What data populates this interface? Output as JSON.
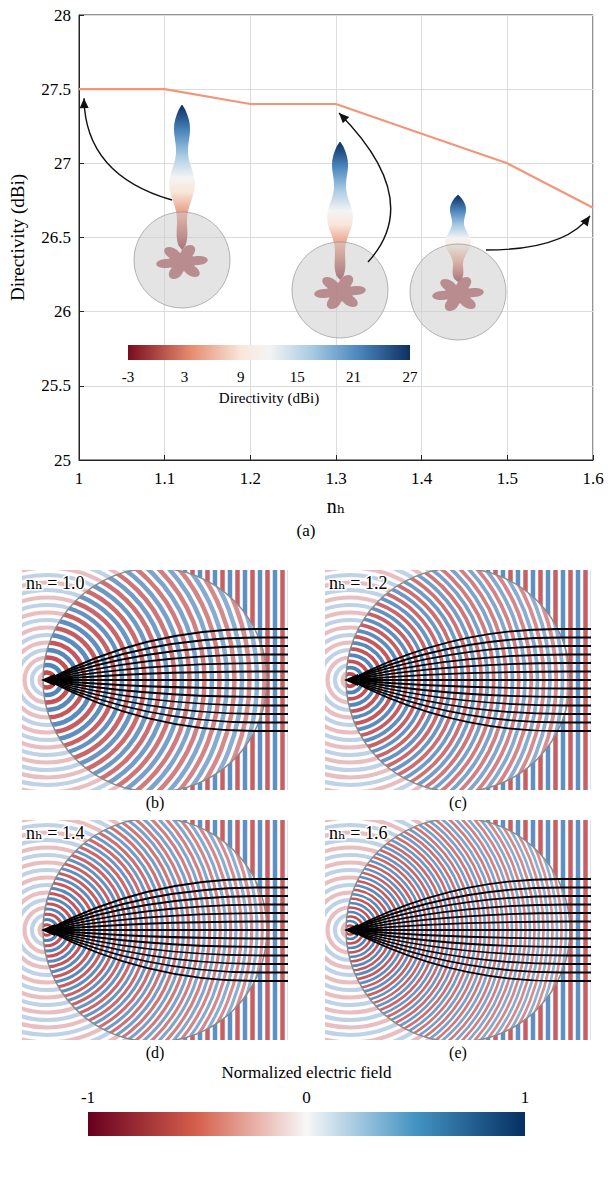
{
  "chart_data": {
    "type": "line",
    "x": [
      1,
      1.1,
      1.2,
      1.3,
      1.4,
      1.5,
      1.6
    ],
    "values": [
      27.5,
      27.5,
      27.4,
      27.4,
      27.2,
      27.0,
      26.7
    ],
    "color": "#f4957a",
    "x_label": "nₕ",
    "y_label": "Directivity (dBi)",
    "xlim": [
      1,
      1.6
    ],
    "xticks": [
      1,
      1.1,
      1.2,
      1.3,
      1.4,
      1.5,
      1.6
    ],
    "ylim": [
      25,
      28
    ],
    "yticks": [
      25,
      25.5,
      26,
      26.5,
      27,
      27.5,
      28
    ],
    "grid": true,
    "panel_label": "(a)",
    "colorbar": {
      "label": "Directivity (dBi)",
      "range": [
        -3,
        27
      ],
      "ticks": [
        -3,
        3,
        9,
        15,
        21,
        27
      ]
    }
  },
  "field_panels": [
    {
      "title": "nₕ = 1.0",
      "label": "(b)"
    },
    {
      "title": "nₕ = 1.2",
      "label": "(c)"
    },
    {
      "title": "nₕ = 1.4",
      "label": "(d)"
    },
    {
      "title": "nₕ = 1.6",
      "label": "(e)"
    }
  ],
  "field_colorbar": {
    "label": "Normalized electric field",
    "range": [
      -1,
      1
    ],
    "ticks": [
      -1,
      0,
      1
    ]
  }
}
